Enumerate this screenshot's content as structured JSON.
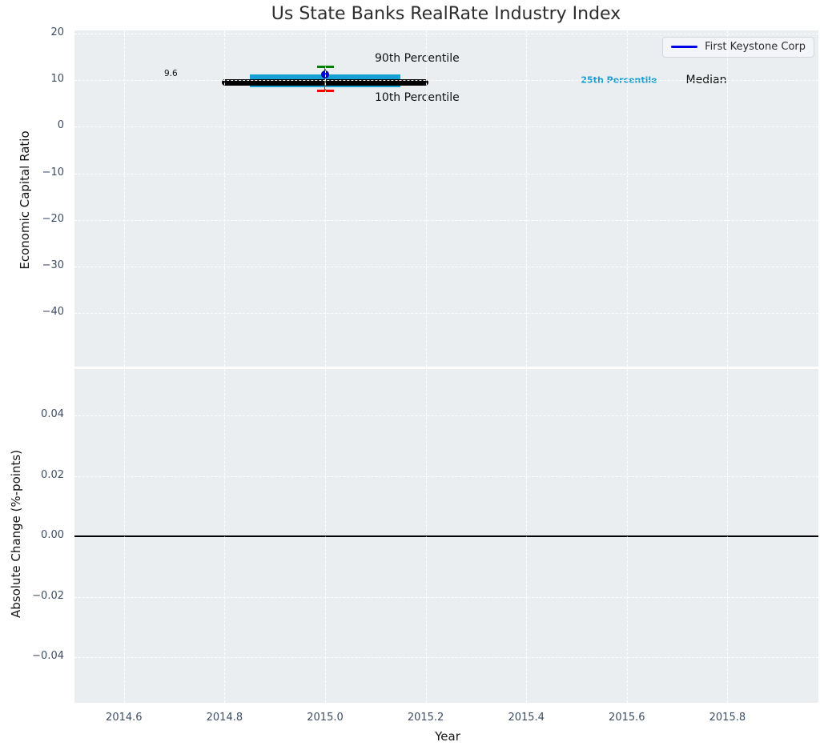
{
  "figure": {
    "title": "Us State Banks RealRate Industry Index",
    "background_color": "#ffffff",
    "plot_background_color": "#eaeef1",
    "grid_color": "#ffffff"
  },
  "top_plot": {
    "ylabel": "Economic Capital Ratio",
    "ytick_labels": [
      "20",
      "10",
      "0",
      "−10",
      "−20",
      "−30",
      "−40"
    ],
    "annotations": {
      "median_value": "9.6",
      "p90": "90th Percentile",
      "p10": "10th Percentile",
      "p25": "25th Percentile",
      "median": "Median"
    },
    "legend": {
      "label": "First Keystone Corp",
      "line_color": "#0000e6"
    },
    "colors": {
      "band": "#17a0d4",
      "median_line": "#000000",
      "p90_cap": "#008000",
      "p10_cap": "#ff0000",
      "marker": "#0000e6",
      "p25_text": "#17a0d4"
    }
  },
  "bottom_plot": {
    "ylabel": "Absolute Change (%-points)",
    "ytick_labels": [
      "0.04",
      "0.02",
      "0.00",
      "−0.02",
      "−0.04"
    ]
  },
  "x_axis": {
    "label": "Year",
    "tick_labels": [
      "2014.6",
      "2014.8",
      "2015.0",
      "2015.2",
      "2015.4",
      "2015.6",
      "2015.8"
    ]
  },
  "chart_data": [
    {
      "type": "line",
      "title": "Us State Banks RealRate Industry Index",
      "xlabel": "Year",
      "ylabel": "Economic Capital Ratio",
      "xlim": [
        2014.5,
        2015.98
      ],
      "ylim": [
        -51,
        21
      ],
      "xticks": [
        2014.6,
        2014.8,
        2015.0,
        2015.2,
        2015.4,
        2015.6,
        2015.8
      ],
      "yticks": [
        20,
        10,
        0,
        -10,
        -20,
        -30,
        -40
      ],
      "grid": true,
      "legend_position": "upper right",
      "legend": [
        "First Keystone Corp"
      ],
      "series": [
        {
          "name": "Median",
          "type": "line",
          "x": [
            2014.8,
            2015.2
          ],
          "y": [
            9.6,
            9.6
          ],
          "color": "#000000",
          "linewidth": 8,
          "value_label": "9.6"
        },
        {
          "name": "25th-75th Percentile band",
          "type": "band",
          "x": [
            2014.85,
            2015.15
          ],
          "y_low": 8.4,
          "y_high": 11.3,
          "color": "#17a0d4"
        },
        {
          "name": "10th-90th Percentile whisker",
          "type": "errorbar",
          "x": 2015.0,
          "y_low": 7.8,
          "y_high": 12.9,
          "cap_low_color": "#ff0000",
          "cap_high_color": "#008000"
        },
        {
          "name": "First Keystone Corp",
          "type": "scatter",
          "x": [
            2015.0
          ],
          "y": [
            11.2
          ],
          "marker": "circle",
          "color": "#0000e6"
        }
      ],
      "annotations": [
        {
          "text": "9.6",
          "x": 2014.71,
          "y": 10.4
        },
        {
          "text": "90th Percentile",
          "x": 2015.1,
          "y": 14.5
        },
        {
          "text": "10th Percentile",
          "x": 2015.1,
          "y": 6.0
        },
        {
          "text": "25th Percentile",
          "x": 2015.585,
          "y": 9.6
        },
        {
          "text": "Median",
          "x": 2015.76,
          "y": 9.6
        }
      ]
    },
    {
      "type": "line",
      "xlabel": "Year",
      "ylabel": "Absolute Change (%-points)",
      "xlim": [
        2014.5,
        2015.98
      ],
      "ylim": [
        -0.055,
        0.055
      ],
      "xticks": [
        2014.6,
        2014.8,
        2015.0,
        2015.2,
        2015.4,
        2015.6,
        2015.8
      ],
      "yticks": [
        0.04,
        0.02,
        0.0,
        -0.02,
        -0.04
      ],
      "grid": true,
      "series": [
        {
          "name": "zero line",
          "type": "hline",
          "y": 0.0,
          "color": "#000000"
        }
      ]
    }
  ]
}
